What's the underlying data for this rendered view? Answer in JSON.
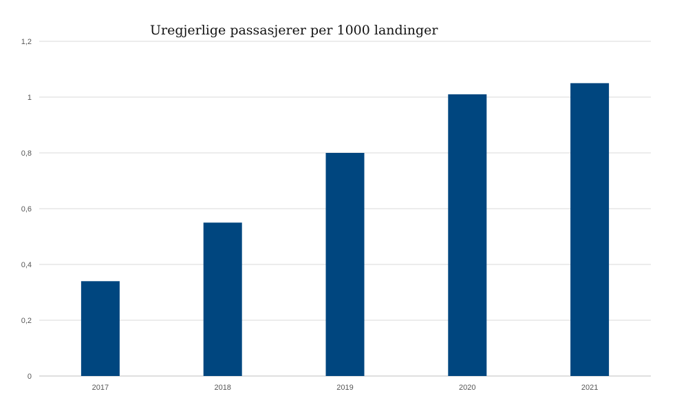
{
  "chart_data": {
    "type": "bar",
    "title": "Uregjerlige passasjerer per 1000 landinger",
    "xlabel": "",
    "ylabel": "",
    "categories": [
      "2017",
      "2018",
      "2019",
      "2020",
      "2021"
    ],
    "values": [
      0.34,
      0.55,
      0.8,
      1.01,
      1.05
    ],
    "ylim": [
      0,
      1.2
    ],
    "yticks": [
      "0",
      "0,2",
      "0,4",
      "0,6",
      "0,8",
      "1",
      "1,2"
    ],
    "grid": true,
    "legend": "none",
    "bar_color": "#00467f"
  }
}
